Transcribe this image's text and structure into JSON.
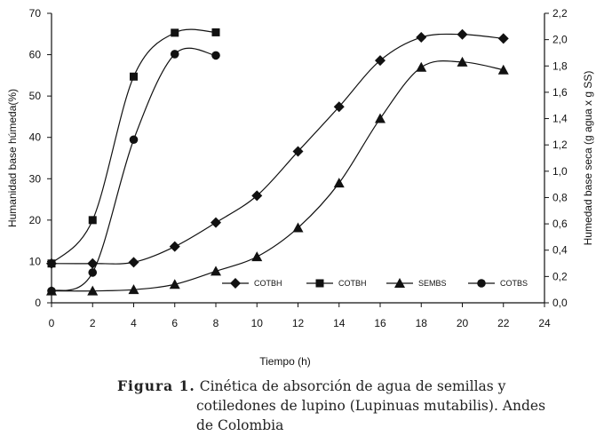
{
  "chart_data": {
    "type": "line",
    "xlabel": "Tiempo (h)",
    "ylabel_left": "Humanidad base húmeda(%)",
    "ylabel_right": "Humedad base seca (g agua x g SS)",
    "xlim": [
      0,
      24
    ],
    "x_ticks": [
      "0",
      "2",
      "4",
      "6",
      "8",
      "10",
      "12",
      "14",
      "16",
      "18",
      "20",
      "22",
      "24"
    ],
    "ylim_left": [
      0,
      70
    ],
    "y_ticks_left": [
      "0",
      "10",
      "20",
      "30",
      "40",
      "50",
      "60",
      "70"
    ],
    "ylim_right": [
      0,
      2.2
    ],
    "y_ticks_right": [
      "0,0",
      "0,2",
      "0,4",
      "0,6",
      "0,8",
      "1,0",
      "1,2",
      "1,4",
      "1,6",
      "1,8",
      "2,0",
      "2,2"
    ],
    "grid": false,
    "legend_position": "bottom-center",
    "series": [
      {
        "name": "COTBH",
        "marker": "diamond",
        "axis": "left",
        "x": [
          0,
          2,
          4,
          6,
          8,
          10,
          12,
          14,
          16,
          18,
          20,
          22
        ],
        "y": [
          9.5,
          9.5,
          9.8,
          13.6,
          19.4,
          25.9,
          36.6,
          47.4,
          58.6,
          64.2,
          64.9,
          63.9
        ]
      },
      {
        "name": "COTBH",
        "marker": "square",
        "axis": "left",
        "x": [
          0,
          2,
          4,
          6,
          8
        ],
        "y": [
          9.5,
          20.0,
          54.7,
          65.3,
          65.4
        ]
      },
      {
        "name": "SEMBS",
        "marker": "triangle",
        "axis": "right",
        "x": [
          0,
          2,
          4,
          6,
          8,
          10,
          12,
          14,
          16,
          18,
          20,
          22
        ],
        "y": [
          0.09,
          0.09,
          0.1,
          0.14,
          0.24,
          0.35,
          0.57,
          0.91,
          1.4,
          1.79,
          1.83,
          1.77
        ]
      },
      {
        "name": "COTBS",
        "marker": "circle",
        "axis": "right",
        "x": [
          0,
          2,
          4,
          6,
          8
        ],
        "y": [
          0.09,
          0.23,
          1.24,
          1.89,
          1.88
        ]
      }
    ]
  },
  "caption": {
    "figure_label": "Figura 1.",
    "line1": "Cinética de absorción de agua de semillas y",
    "line2": "cotiledones de lupino  (Lupinuas mutabilis). Andes",
    "line3": "de Colombia"
  }
}
